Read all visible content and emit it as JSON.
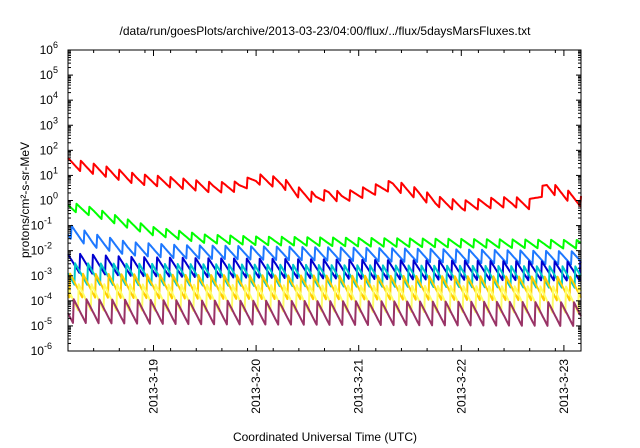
{
  "chart_data": {
    "type": "line",
    "title": "/data/run/goesPlots/archive/2013-03-23/04:00/flux/../flux/5daysMarsFluxes.txt",
    "xlabel": "Coordinated Universal Time (UTC)",
    "ylabel": "protons/cm²-s-sr-MeV",
    "x_axis": {
      "type": "date",
      "range": [
        "2013-03-18T04:00",
        "2013-03-23T04:00"
      ],
      "ticks": [
        {
          "value": "2013-03-19T00:00",
          "label": "2013-3-19"
        },
        {
          "value": "2013-03-20T00:00",
          "label": "2013-3-20"
        },
        {
          "value": "2013-03-21T00:00",
          "label": "2013-3-21"
        },
        {
          "value": "2013-03-22T00:00",
          "label": "2013-3-22"
        },
        {
          "value": "2013-03-23T00:00",
          "label": "2013-3-23"
        }
      ]
    },
    "y_axis": {
      "scale": "log",
      "range": [
        1e-06,
        1000000.0
      ],
      "ticks": [
        {
          "value": 1e-06,
          "base": "10",
          "exp": "-6"
        },
        {
          "value": 1e-05,
          "base": "10",
          "exp": "-5"
        },
        {
          "value": 0.0001,
          "base": "10",
          "exp": "-4"
        },
        {
          "value": 0.001,
          "base": "10",
          "exp": "-3"
        },
        {
          "value": 0.01,
          "base": "10",
          "exp": "-2"
        },
        {
          "value": 0.1,
          "base": "10",
          "exp": "-1"
        },
        {
          "value": 1.0,
          "base": "10",
          "exp": "0"
        },
        {
          "value": 10.0,
          "base": "10",
          "exp": "1"
        },
        {
          "value": 100.0,
          "base": "10",
          "exp": "2"
        },
        {
          "value": 1000.0,
          "base": "10",
          "exp": "3"
        },
        {
          "value": 10000.0,
          "base": "10",
          "exp": "4"
        },
        {
          "value": 100000.0,
          "base": "10",
          "exp": "5"
        },
        {
          "value": 1000000.0,
          "base": "10",
          "exp": "6"
        }
      ]
    },
    "grid": false,
    "legend": "none",
    "series": [
      {
        "color": "#ff0000",
        "x": [
          "2013-03-18T04:00",
          "2013-03-18T12:00",
          "2013-03-18T20:00",
          "2013-03-19T05:00",
          "2013-03-19T14:00",
          "2013-03-19T20:00",
          "2013-03-20T00:00",
          "2013-03-20T06:00",
          "2013-03-20T10:00",
          "2013-03-20T14:00",
          "2013-03-20T17:00",
          "2013-03-20T20:00",
          "2013-03-21T02:00",
          "2013-03-21T08:00",
          "2013-03-21T14:00",
          "2013-03-21T18:00",
          "2013-03-22T00:00",
          "2013-03-22T08:00",
          "2013-03-22T12:00",
          "2013-03-22T16:00",
          "2013-03-22T20:00",
          "2013-03-23T04:00"
        ],
        "y": [
          30,
          15,
          7,
          5,
          3.2,
          3.5,
          7,
          5,
          2,
          1.2,
          1.8,
          1.3,
          2.2,
          4,
          1.8,
          0.9,
          0.6,
          0.8,
          0.85,
          0.7,
          3.5,
          0.9
        ]
      },
      {
        "color": "#00ff00",
        "x": [
          "2013-03-18T04:00",
          "2013-03-18T10:00",
          "2013-03-18T18:00",
          "2013-03-19T00:00",
          "2013-03-19T12:00",
          "2013-03-20T00:00",
          "2013-03-21T00:00",
          "2013-03-22T00:00",
          "2013-03-23T04:00"
        ],
        "y": [
          0.6,
          0.35,
          0.12,
          0.06,
          0.03,
          0.025,
          0.022,
          0.02,
          0.018
        ]
      },
      {
        "color": "#1e78ff",
        "x": [
          "2013-03-18T04:00",
          "2013-03-18T10:00",
          "2013-03-18T18:00",
          "2013-03-19T06:00",
          "2013-03-20T00:00",
          "2013-03-21T00:00",
          "2013-03-22T00:00",
          "2013-03-23T04:00"
        ],
        "y": [
          0.06,
          0.025,
          0.012,
          0.009,
          0.008,
          0.007,
          0.006,
          0.005
        ]
      },
      {
        "color": "#0000d0",
        "x": [
          "2013-03-18T04:00",
          "2013-03-18T18:00",
          "2013-03-19T12:00",
          "2013-03-20T12:00",
          "2013-03-21T12:00",
          "2013-03-23T04:00"
        ],
        "y": [
          0.0035,
          0.0025,
          0.0022,
          0.002,
          0.0018,
          0.0016
        ]
      },
      {
        "color": "#00c8c8",
        "x": [
          "2013-03-18T04:00",
          "2013-03-19T12:00",
          "2013-03-21T00:00",
          "2013-03-23T04:00"
        ],
        "y": [
          0.0012,
          0.0011,
          0.001,
          0.0009
        ]
      },
      {
        "color": "#ffcc00",
        "x": [
          "2013-03-18T04:00",
          "2013-03-19T12:00",
          "2013-03-21T00:00",
          "2013-03-23T04:00"
        ],
        "y": [
          0.0004,
          0.00035,
          0.00033,
          0.0003
        ]
      },
      {
        "color": "#ffff66",
        "x": [
          "2013-03-18T04:00",
          "2013-03-19T12:00",
          "2013-03-21T00:00",
          "2013-03-23T04:00"
        ],
        "y": [
          0.00015,
          0.00014,
          0.00013,
          0.00012
        ]
      },
      {
        "color": "#993366",
        "x": [
          "2013-03-18T04:00",
          "2013-03-19T12:00",
          "2013-03-21T00:00",
          "2013-03-23T04:00"
        ],
        "y": [
          4e-05,
          3.5e-05,
          3.3e-05,
          3e-05
        ]
      }
    ]
  }
}
